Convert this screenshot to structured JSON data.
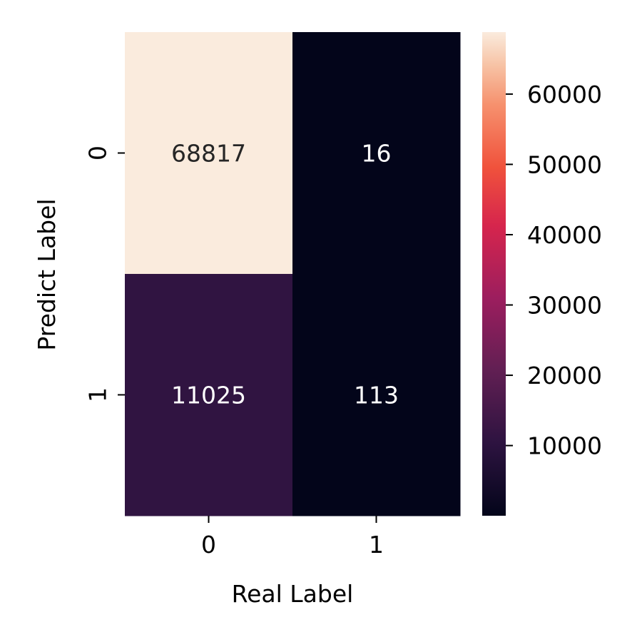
{
  "chart_data": {
    "type": "heatmap",
    "xlabel": "Real Label",
    "ylabel": "Predict Label",
    "x_categories": [
      "0",
      "1"
    ],
    "y_categories": [
      "0",
      "1"
    ],
    "matrix": [
      [
        68817,
        16
      ],
      [
        11025,
        113
      ]
    ],
    "colormap": "rocket",
    "colorbar": {
      "ticks": [
        10000,
        20000,
        30000,
        40000,
        50000,
        60000
      ],
      "tick_labels": [
        "10000",
        "20000",
        "30000",
        "40000",
        "50000",
        "60000"
      ],
      "range": [
        16,
        68817
      ]
    },
    "annotation_colors": {
      "light_cells": "#262626",
      "dark_cells": "#ffffff"
    }
  }
}
